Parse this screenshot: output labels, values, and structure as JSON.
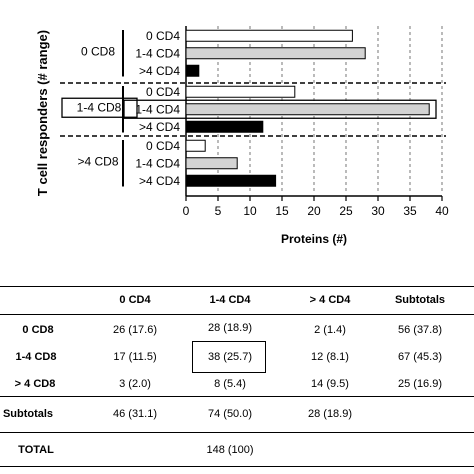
{
  "chart_data": {
    "type": "bar",
    "orientation": "horizontal",
    "xlabel": "Proteins (#)",
    "ylabel": "T cell responders (# range)",
    "xlim": [
      0,
      40
    ],
    "xticks": [
      "0",
      "5",
      "10",
      "15",
      "20",
      "25",
      "30",
      "35",
      "40"
    ],
    "grid": "vertical dashed",
    "groups": [
      {
        "label": "0 CD8",
        "highlighted": false,
        "bars": [
          {
            "label": "0 CD4",
            "value": 26,
            "fill": "#ffffff"
          },
          {
            "label": "1-4 CD4",
            "value": 28,
            "fill": "#d3d3d3"
          },
          {
            "label": ">4 CD4",
            "value": 2,
            "fill": "#000000"
          }
        ]
      },
      {
        "label": "1-4 CD8",
        "highlighted": true,
        "bars": [
          {
            "label": "0 CD4",
            "value": 17,
            "fill": "#ffffff"
          },
          {
            "label": "1-4 CD4",
            "value": 38,
            "fill": "#d3d3d3",
            "highlighted": true
          },
          {
            "label": ">4 CD4",
            "value": 12,
            "fill": "#000000"
          }
        ]
      },
      {
        "label": ">4 CD8",
        "highlighted": false,
        "bars": [
          {
            "label": "0 CD4",
            "value": 3,
            "fill": "#ffffff"
          },
          {
            "label": "1-4 CD4",
            "value": 8,
            "fill": "#d3d3d3"
          },
          {
            "label": ">4 CD4",
            "value": 14,
            "fill": "#000000"
          }
        ]
      }
    ]
  },
  "table": {
    "columns": [
      "",
      "0 CD4",
      "1-4 CD4",
      "> 4 CD4",
      "Subtotals"
    ],
    "rows": [
      {
        "label": "0 CD8",
        "cells": [
          "26 (17.6)",
          "28 (18.9)",
          "2 (1.4)",
          "56 (37.8)"
        ]
      },
      {
        "label": "1-4 CD8",
        "cells": [
          "17 (11.5)",
          "38 (25.7)",
          "12 (8.1)",
          "67 (45.3)"
        ]
      },
      {
        "label": "> 4 CD8",
        "cells": [
          "3 (2.0)",
          "8 (5.4)",
          "14 (9.5)",
          "25 (16.9)"
        ]
      },
      {
        "label": "Subtotals",
        "cells": [
          "46 (31.1)",
          "74 (50.0)",
          "28 (18.9)",
          ""
        ]
      }
    ],
    "total": {
      "label": "TOTAL",
      "value": "148 (100)"
    },
    "highlighted_cell": "38 (25.7)"
  }
}
